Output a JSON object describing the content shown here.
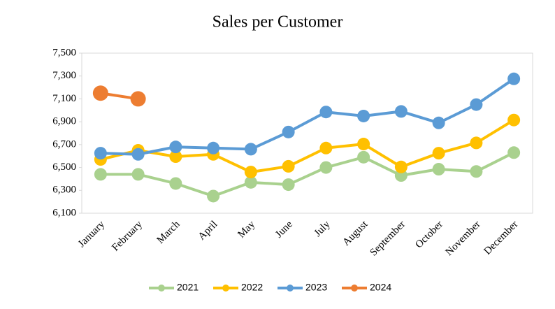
{
  "chart_data": {
    "type": "line",
    "title": "Sales per Customer",
    "categories": [
      "January",
      "February",
      "March",
      "April",
      "May",
      "June",
      "July",
      "August",
      "September",
      "October",
      "November",
      "December"
    ],
    "series": [
      {
        "name": "2021",
        "color": "#a9d18e",
        "values": [
          6440,
          6440,
          6360,
          6250,
          6370,
          6350,
          6500,
          6590,
          6430,
          6485,
          6465,
          6630
        ]
      },
      {
        "name": "2022",
        "color": "#ffc000",
        "values": [
          6570,
          6650,
          6595,
          6615,
          6460,
          6510,
          6670,
          6705,
          6505,
          6625,
          6715,
          6915
        ]
      },
      {
        "name": "2023",
        "color": "#5b9bd5",
        "values": [
          6625,
          6615,
          6680,
          6670,
          6660,
          6810,
          6985,
          6950,
          6990,
          6890,
          7050,
          7275
        ]
      },
      {
        "name": "2024",
        "color": "#ed7d31",
        "values": [
          7150,
          7100,
          null,
          null,
          null,
          null,
          null,
          null,
          null,
          null,
          null,
          null
        ]
      }
    ],
    "ylim": [
      6100,
      7500
    ],
    "yticks": [
      {
        "value": 6100,
        "label": "6,100"
      },
      {
        "value": 6300,
        "label": "6,300"
      },
      {
        "value": 6500,
        "label": "6,500"
      },
      {
        "value": 6700,
        "label": "6,700"
      },
      {
        "value": 6900,
        "label": "6,900"
      },
      {
        "value": 7100,
        "label": "7,100"
      },
      {
        "value": 7300,
        "label": "7,300"
      },
      {
        "value": 7500,
        "label": "7,500"
      }
    ],
    "grid": false,
    "legend": "bottom"
  }
}
